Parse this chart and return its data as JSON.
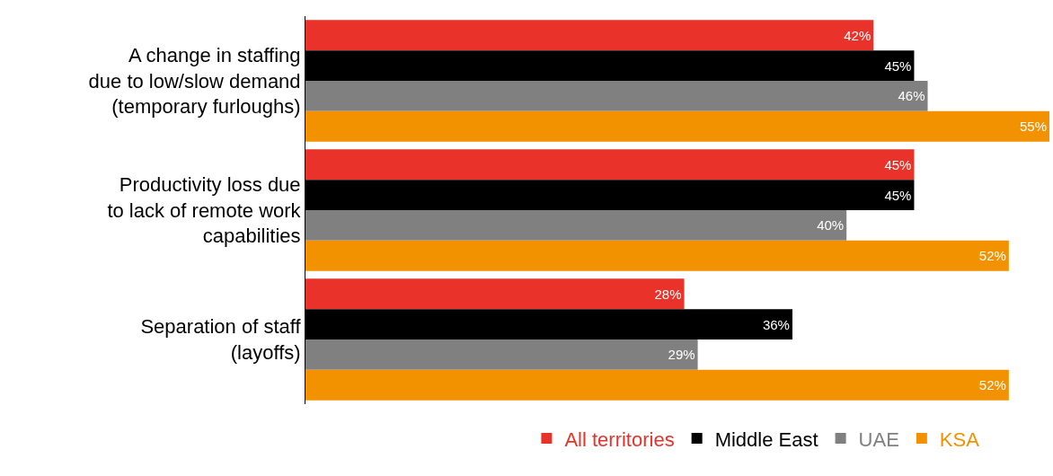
{
  "chart_data": {
    "type": "bar",
    "orientation": "horizontal",
    "legend": "bottom",
    "categories": [
      "A change in staffing due to low/slow demand (temporary furloughs)",
      "Productivity loss due to lack of remote work capabilities",
      "Separation of staff (layoffs)"
    ],
    "series": [
      {
        "name": "All territories",
        "color": "#e8322a",
        "values": [
          42,
          45,
          28
        ],
        "value_labels": [
          "42%",
          "45%",
          "28%"
        ]
      },
      {
        "name": "Middle East",
        "color": "#000000",
        "values": [
          45,
          45,
          36
        ],
        "value_labels": [
          "45%",
          "45%",
          "36%"
        ]
      },
      {
        "name": "UAE",
        "color": "#808080",
        "values": [
          46,
          40,
          29
        ],
        "value_labels": [
          "46%",
          "40%",
          "29%"
        ]
      },
      {
        "name": "KSA",
        "color": "#f39200",
        "values": [
          55,
          52,
          52
        ],
        "value_labels": [
          "55%",
          "52%",
          "52%"
        ]
      }
    ]
  }
}
